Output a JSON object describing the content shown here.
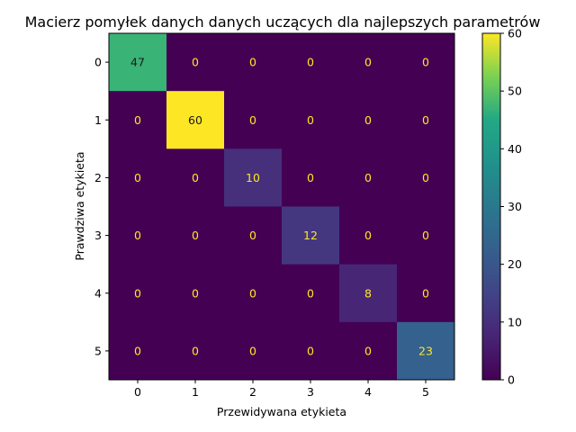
{
  "chart_data": {
    "type": "heatmap",
    "title": "Macierz pomyłek danych danych uczących dla najlepszych parametrów",
    "xlabel": "Przewidywana etykieta",
    "ylabel": "Prawdziwa etykieta",
    "x_categories": [
      "0",
      "1",
      "2",
      "3",
      "4",
      "5"
    ],
    "y_categories": [
      "0",
      "1",
      "2",
      "3",
      "4",
      "5"
    ],
    "values": [
      [
        47,
        0,
        0,
        0,
        0,
        0
      ],
      [
        0,
        60,
        0,
        0,
        0,
        0
      ],
      [
        0,
        0,
        10,
        0,
        0,
        0
      ],
      [
        0,
        0,
        0,
        12,
        0,
        0
      ],
      [
        0,
        0,
        0,
        0,
        8,
        0
      ],
      [
        0,
        0,
        0,
        0,
        0,
        23
      ]
    ],
    "colormap": "viridis",
    "colorbar": {
      "range": [
        0,
        60
      ],
      "ticks": [
        "0",
        "10",
        "20",
        "30",
        "40",
        "50",
        "60"
      ]
    },
    "text_colors": {
      "light": "#fde725",
      "dark": "#1a1a1a"
    }
  }
}
